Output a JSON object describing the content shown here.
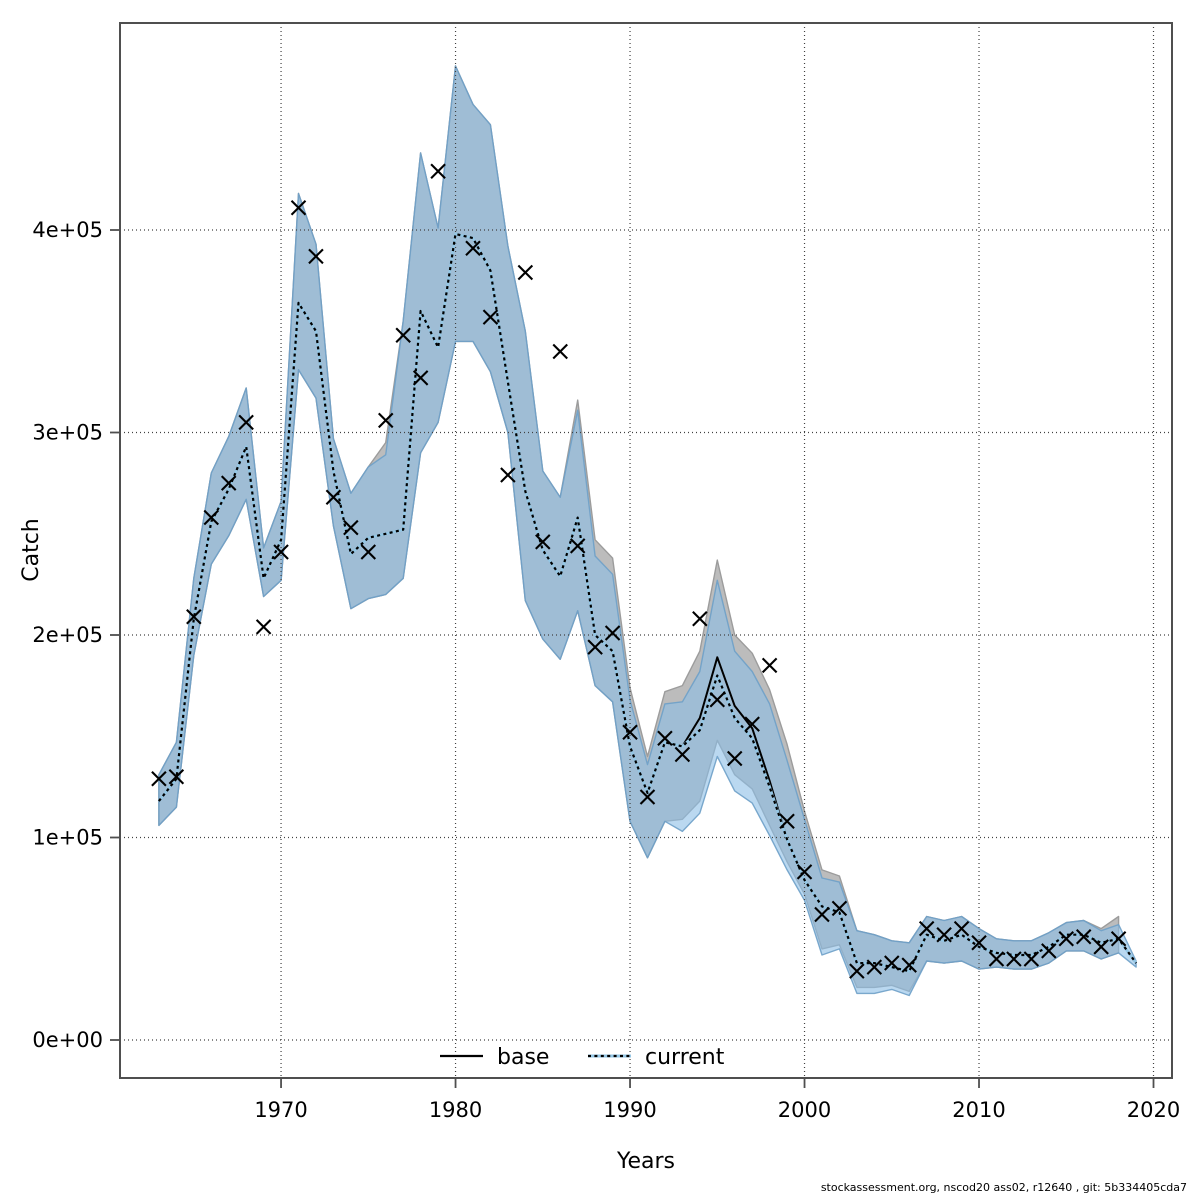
{
  "footer": {
    "text": "stockassessment.org, nscod20  ass02, r12640 , git: 5b334405cda7"
  },
  "legend": {
    "items": [
      {
        "label": "base",
        "style": "solid-black-line"
      },
      {
        "label": "current",
        "style": "blue-line-black-dotted"
      }
    ]
  },
  "chart_data": {
    "type": "area",
    "title": "",
    "xlabel": "Years",
    "ylabel": "Catch",
    "grid": true,
    "legend_position": "bottom-center-inside",
    "xlim": [
      1960.77,
      2021.06
    ],
    "ylim": [
      -18765,
      502222
    ],
    "x_ticks": {
      "values": [
        1970,
        1980,
        1990,
        2000,
        2010,
        2020
      ],
      "labels": [
        "1970",
        "1980",
        "1990",
        "2000",
        "2010",
        "2020"
      ]
    },
    "y_ticks": {
      "values": [
        0,
        100000,
        200000,
        300000,
        400000
      ],
      "labels": [
        "0e+00",
        "1e+05",
        "2e+05",
        "3e+05",
        "4e+05"
      ]
    },
    "years": [
      1963,
      1964,
      1965,
      1966,
      1967,
      1968,
      1969,
      1970,
      1971,
      1972,
      1973,
      1974,
      1975,
      1976,
      1977,
      1978,
      1979,
      1980,
      1981,
      1982,
      1983,
      1984,
      1985,
      1986,
      1987,
      1988,
      1989,
      1990,
      1991,
      1992,
      1993,
      1994,
      1995,
      1996,
      1997,
      1998,
      1999,
      2000,
      2001,
      2002,
      2003,
      2004,
      2005,
      2006,
      2007,
      2008,
      2009,
      2010,
      2011,
      2012,
      2013,
      2014,
      2015,
      2016,
      2017,
      2018,
      2019
    ],
    "series": [
      {
        "name": "observed_catch",
        "type": "scatter",
        "marker": "x",
        "values": [
          129000,
          130000,
          209000,
          258000,
          275000,
          305000,
          204000,
          241000,
          411000,
          387000,
          268000,
          253000,
          241000,
          306000,
          348000,
          327000,
          429000,
          null,
          391000,
          357000,
          279000,
          379000,
          246000,
          340000,
          244000,
          194000,
          201000,
          152000,
          120000,
          149000,
          141000,
          208000,
          168000,
          139000,
          156000,
          185000,
          108000,
          83000,
          62000,
          65000,
          34000,
          36000,
          38000,
          37000,
          55000,
          52000,
          55000,
          48000,
          40000,
          40000,
          40000,
          44000,
          50000,
          51000,
          46000,
          50000,
          null
        ]
      },
      {
        "name": "base",
        "type": "line_with_ci",
        "values": [
          118000,
          129000,
          208000,
          256000,
          272000,
          293000,
          228000,
          247000,
          364000,
          350000,
          281000,
          240000,
          248000,
          250000,
          252000,
          360000,
          342000,
          398000,
          396000,
          380000,
          325000,
          271000,
          242000,
          229000,
          258000,
          200000,
          192000,
          145000,
          122000,
          147000,
          145000,
          159000,
          189000,
          165000,
          154000,
          128000,
          99000,
          79000,
          66000,
          63000,
          38000,
          38000,
          36000,
          34000,
          52000,
          49000,
          52000,
          46000,
          43000,
          42000,
          42000,
          46000,
          52000,
          52000,
          48000,
          50000,
          null
        ],
        "lo": [
          106000,
          115000,
          190000,
          235000,
          249000,
          267000,
          219000,
          227000,
          331000,
          317000,
          254000,
          213000,
          218000,
          220000,
          228000,
          290000,
          305000,
          345000,
          345000,
          330000,
          300000,
          217000,
          198000,
          188000,
          212000,
          175000,
          167000,
          108000,
          90000,
          108000,
          109000,
          118000,
          148000,
          131000,
          124000,
          106000,
          88000,
          72000,
          45000,
          47000,
          26000,
          26000,
          27000,
          24000,
          39000,
          38000,
          39000,
          35000,
          36000,
          35000,
          35000,
          38000,
          44000,
          44000,
          40000,
          43000,
          null
        ],
        "hi": [
          131000,
          147000,
          228000,
          280000,
          298000,
          322000,
          243000,
          266000,
          418000,
          393000,
          297000,
          270000,
          283000,
          295000,
          355000,
          438000,
          401000,
          481000,
          462000,
          452000,
          392000,
          350000,
          281000,
          268000,
          316000,
          247000,
          238000,
          174000,
          140000,
          172000,
          175000,
          192000,
          237000,
          200000,
          191000,
          173000,
          146000,
          113000,
          84000,
          81000,
          54000,
          52000,
          49000,
          48000,
          61000,
          59000,
          61000,
          55000,
          50000,
          49000,
          49000,
          53000,
          58000,
          59000,
          55000,
          61000,
          null
        ]
      },
      {
        "name": "current",
        "type": "line_with_ci",
        "values": [
          118000,
          129000,
          208000,
          256000,
          272000,
          293000,
          228000,
          247000,
          364000,
          350000,
          281000,
          240000,
          248000,
          250000,
          252000,
          360000,
          342000,
          398000,
          396000,
          380000,
          325000,
          271000,
          242000,
          229000,
          258000,
          200000,
          192000,
          145000,
          122000,
          147000,
          145000,
          153000,
          180000,
          159000,
          149000,
          125000,
          99000,
          79000,
          66000,
          63000,
          38000,
          38000,
          36000,
          34000,
          52000,
          49000,
          52000,
          46000,
          43000,
          42000,
          42000,
          46000,
          52000,
          52000,
          48000,
          50000,
          38000
        ],
        "lo": [
          106000,
          115000,
          190000,
          235000,
          249000,
          267000,
          219000,
          227000,
          331000,
          317000,
          254000,
          213000,
          218000,
          220000,
          228000,
          290000,
          305000,
          345000,
          345000,
          330000,
          300000,
          217000,
          198000,
          188000,
          212000,
          175000,
          167000,
          108000,
          90000,
          108000,
          103000,
          112000,
          140000,
          123000,
          117000,
          101000,
          84000,
          69000,
          42000,
          45000,
          23000,
          23000,
          25000,
          22000,
          39000,
          38000,
          39000,
          35000,
          36000,
          35000,
          35000,
          38000,
          44000,
          44000,
          40000,
          43000,
          36000
        ],
        "hi": [
          131000,
          147000,
          228000,
          280000,
          298000,
          322000,
          243000,
          266000,
          418000,
          393000,
          297000,
          270000,
          283000,
          289000,
          355000,
          438000,
          401000,
          481000,
          462000,
          452000,
          392000,
          350000,
          281000,
          268000,
          311000,
          239000,
          230000,
          168000,
          136000,
          166000,
          167000,
          182000,
          227000,
          192000,
          182000,
          166000,
          138000,
          109000,
          80000,
          78000,
          54000,
          52000,
          49000,
          48000,
          61000,
          59000,
          61000,
          55000,
          50000,
          49000,
          49000,
          53000,
          58000,
          59000,
          54000,
          57000,
          39000
        ]
      }
    ],
    "colors": {
      "band_base_fill": "#bcbcbc",
      "band_base_edge": "#9c9c9c",
      "band_current_fill": "rgba(140,190,230,0.60)",
      "band_current_edge": "rgba(110,160,200,0.90)",
      "line_base": "#000000",
      "line_current_under": "#94c6e4",
      "line_current_dash": "#000000",
      "marker": "#000000",
      "grid": "#404040",
      "frame": "#4f4f4f",
      "text": "#000000"
    }
  }
}
